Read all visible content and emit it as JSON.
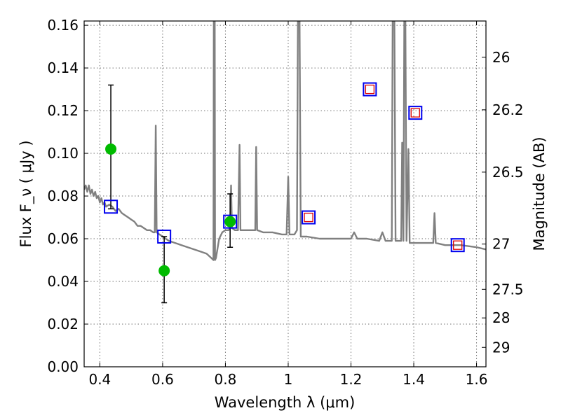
{
  "chart_data": {
    "type": "scatter",
    "xlabel": "Wavelength  λ (μm)",
    "ylabel": "Flux  F_ν  ( μJy )",
    "ylabel_right": "Magnitude (AB)",
    "xlim": [
      0.35,
      1.63
    ],
    "ylim": [
      0.0,
      0.162
    ],
    "grid": true,
    "x_ticks": [
      0.4,
      0.6,
      0.8,
      1.0,
      1.2,
      1.4,
      1.6
    ],
    "x_tick_labels": [
      "0.4",
      "0.6",
      "0.8",
      "1",
      "1.2",
      "1.4",
      "1.6"
    ],
    "y_ticks": [
      0.0,
      0.02,
      0.04,
      0.06,
      0.08,
      0.1,
      0.12,
      0.14,
      0.16
    ],
    "y_tick_labels": [
      "0.00",
      "0.02",
      "0.04",
      "0.06",
      "0.08",
      "0.10",
      "0.12",
      "0.14",
      "0.16"
    ],
    "right_ticks": [
      {
        "flux": 0.145,
        "label": "26"
      },
      {
        "flux": 0.1204,
        "label": "26.2"
      },
      {
        "flux": 0.0912,
        "label": "26.5"
      },
      {
        "flux": 0.0575,
        "label": "27"
      },
      {
        "flux": 0.0363,
        "label": "27.5"
      },
      {
        "flux": 0.0229,
        "label": "28"
      },
      {
        "flux": 0.0091,
        "label": "29"
      }
    ],
    "series": [
      {
        "kind": "model_spectrum",
        "color": "#808080",
        "points": [
          [
            0.35,
            0.083
          ],
          [
            0.355,
            0.085
          ],
          [
            0.36,
            0.082
          ],
          [
            0.365,
            0.085
          ],
          [
            0.37,
            0.081
          ],
          [
            0.375,
            0.083
          ],
          [
            0.38,
            0.08
          ],
          [
            0.385,
            0.082
          ],
          [
            0.39,
            0.079
          ],
          [
            0.395,
            0.08
          ],
          [
            0.4,
            0.077
          ],
          [
            0.405,
            0.079
          ],
          [
            0.41,
            0.076
          ],
          [
            0.415,
            0.077
          ],
          [
            0.42,
            0.075
          ],
          [
            0.43,
            0.076
          ],
          [
            0.44,
            0.075
          ],
          [
            0.45,
            0.073
          ],
          [
            0.46,
            0.074
          ],
          [
            0.47,
            0.072
          ],
          [
            0.48,
            0.071
          ],
          [
            0.49,
            0.07
          ],
          [
            0.5,
            0.069
          ],
          [
            0.51,
            0.068
          ],
          [
            0.52,
            0.066
          ],
          [
            0.53,
            0.066
          ],
          [
            0.54,
            0.065
          ],
          [
            0.55,
            0.064
          ],
          [
            0.56,
            0.064
          ],
          [
            0.57,
            0.063
          ],
          [
            0.575,
            0.063
          ],
          [
            0.578,
            0.113
          ],
          [
            0.581,
            0.063
          ],
          [
            0.59,
            0.062
          ],
          [
            0.6,
            0.061
          ],
          [
            0.62,
            0.059
          ],
          [
            0.64,
            0.058
          ],
          [
            0.66,
            0.057
          ],
          [
            0.68,
            0.056
          ],
          [
            0.7,
            0.055
          ],
          [
            0.72,
            0.054
          ],
          [
            0.74,
            0.053
          ],
          [
            0.755,
            0.051
          ],
          [
            0.762,
            0.05
          ],
          [
            0.763,
            0.168
          ],
          [
            0.766,
            0.168
          ],
          [
            0.767,
            0.05
          ],
          [
            0.77,
            0.051
          ],
          [
            0.78,
            0.06
          ],
          [
            0.79,
            0.063
          ],
          [
            0.8,
            0.064
          ],
          [
            0.81,
            0.064
          ],
          [
            0.815,
            0.065
          ],
          [
            0.818,
            0.085
          ],
          [
            0.821,
            0.065
          ],
          [
            0.83,
            0.064
          ],
          [
            0.84,
            0.064
          ],
          [
            0.845,
            0.104
          ],
          [
            0.848,
            0.064
          ],
          [
            0.86,
            0.064
          ],
          [
            0.88,
            0.064
          ],
          [
            0.895,
            0.064
          ],
          [
            0.898,
            0.103
          ],
          [
            0.901,
            0.064
          ],
          [
            0.92,
            0.063
          ],
          [
            0.95,
            0.063
          ],
          [
            0.98,
            0.062
          ],
          [
            0.995,
            0.062
          ],
          [
            1.0,
            0.089
          ],
          [
            1.004,
            0.062
          ],
          [
            1.02,
            0.062
          ],
          [
            1.028,
            0.064
          ],
          [
            1.031,
            0.168
          ],
          [
            1.036,
            0.168
          ],
          [
            1.04,
            0.061
          ],
          [
            1.06,
            0.061
          ],
          [
            1.1,
            0.06
          ],
          [
            1.15,
            0.06
          ],
          [
            1.2,
            0.06
          ],
          [
            1.21,
            0.063
          ],
          [
            1.22,
            0.06
          ],
          [
            1.25,
            0.06
          ],
          [
            1.29,
            0.059
          ],
          [
            1.3,
            0.063
          ],
          [
            1.31,
            0.059
          ],
          [
            1.33,
            0.059
          ],
          [
            1.333,
            0.168
          ],
          [
            1.338,
            0.168
          ],
          [
            1.342,
            0.059
          ],
          [
            1.36,
            0.059
          ],
          [
            1.363,
            0.105
          ],
          [
            1.367,
            0.059
          ],
          [
            1.37,
            0.168
          ],
          [
            1.373,
            0.168
          ],
          [
            1.377,
            0.059
          ],
          [
            1.383,
            0.102
          ],
          [
            1.387,
            0.058
          ],
          [
            1.4,
            0.058
          ],
          [
            1.45,
            0.058
          ],
          [
            1.462,
            0.058
          ],
          [
            1.466,
            0.072
          ],
          [
            1.47,
            0.058
          ],
          [
            1.5,
            0.057
          ],
          [
            1.55,
            0.057
          ],
          [
            1.6,
            0.056
          ],
          [
            1.63,
            0.055
          ]
        ]
      },
      {
        "kind": "observed_flux_with_errors",
        "color": "#00bb00",
        "points": [
          {
            "x": 0.435,
            "y": 0.102,
            "yerr_low": 0.074,
            "yerr_high": 0.132
          },
          {
            "x": 0.605,
            "y": 0.045,
            "yerr_low": 0.03,
            "yerr_high": 0.061
          },
          {
            "x": 0.815,
            "y": 0.068,
            "yerr_low": 0.056,
            "yerr_high": 0.081
          }
        ]
      },
      {
        "kind": "model_band_flux",
        "color": "#0000ee",
        "points": [
          {
            "x": 0.435,
            "y": 0.075
          },
          {
            "x": 0.605,
            "y": 0.061
          },
          {
            "x": 0.815,
            "y": 0.068
          },
          {
            "x": 1.065,
            "y": 0.07
          },
          {
            "x": 1.26,
            "y": 0.13
          },
          {
            "x": 1.405,
            "y": 0.119
          },
          {
            "x": 1.54,
            "y": 0.057
          }
        ]
      },
      {
        "kind": "upper_limit_band_flux",
        "color": "#dd0000",
        "points": [
          {
            "x": 1.065,
            "y": 0.07
          },
          {
            "x": 1.26,
            "y": 0.13
          },
          {
            "x": 1.405,
            "y": 0.119
          },
          {
            "x": 1.54,
            "y": 0.057
          }
        ]
      }
    ]
  }
}
